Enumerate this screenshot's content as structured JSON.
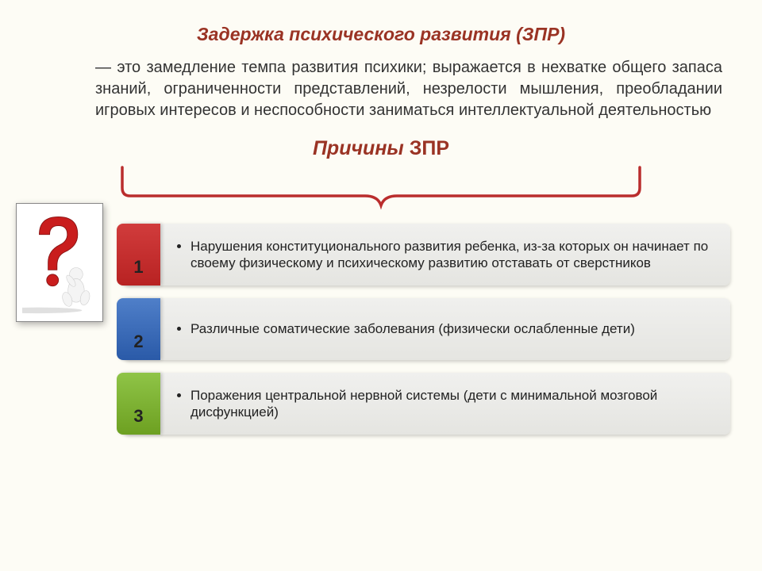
{
  "title": "Задержка психического развития (ЗПР)",
  "definition": "— это замедление темпа развития психики; выражается в нехватке общего запаса знаний, ограниченности представлений, незрелости мышления, преобладании игровых интересов и неспособности заниматься интеллектуальной деятельностью",
  "subtitle_italic": "Причины",
  "subtitle_rest": " ЗПР",
  "icon": "question-figure",
  "colors": {
    "title": "#9a3324",
    "background": "#fdfcf5",
    "bracket": "#ba2d2d",
    "tab_1_top": "#d13c3c",
    "tab_1_bot": "#b82222",
    "tab_2_top": "#4f7fc9",
    "tab_2_bot": "#2a5aa8",
    "tab_3_top": "#8fc447",
    "tab_3_bot": "#6da021",
    "item_body_top": "#f0f0ee",
    "item_body_bot": "#e5e5e1"
  },
  "typography": {
    "title_fontsize": 23,
    "definition_fontsize": 20,
    "subtitle_fontsize": 25,
    "item_fontsize": 17,
    "number_fontsize": 22
  },
  "items": [
    {
      "num": "1",
      "tab_class": "tab-1",
      "text": "Нарушения конституционального развития ребенка, из-за которых он начинает по своему физическому и психическому развитию отставать от сверстников"
    },
    {
      "num": "2",
      "tab_class": "tab-2",
      "text": "Различные соматические заболевания (физически ослабленные дети)"
    },
    {
      "num": "3",
      "tab_class": "tab-3",
      "text": "Поражения центральной нервной системы (дети с минимальной мозговой дисфункцией)"
    }
  ]
}
